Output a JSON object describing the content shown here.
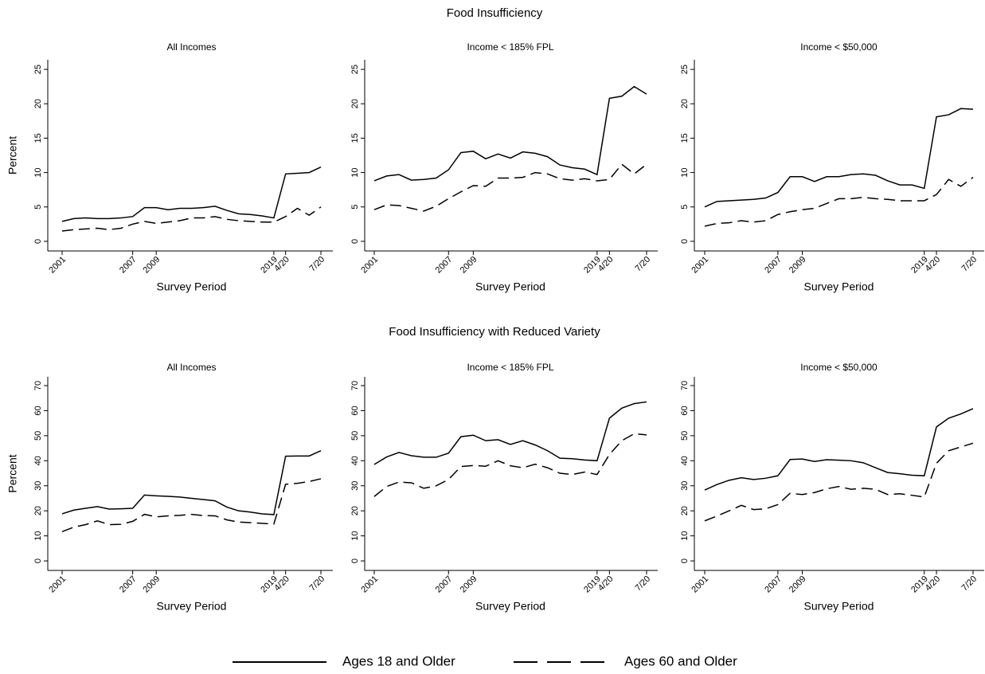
{
  "sections": [
    {
      "title": "Food Insufficiency"
    },
    {
      "title": "Food Insufficiency with Reduced Variety"
    }
  ],
  "legend": [
    {
      "name": "Ages 18 and Older",
      "dash": "solid"
    },
    {
      "name": "Ages 60 and Older",
      "dash": "dashed"
    }
  ],
  "chart_data": [
    {
      "type": "line",
      "title": "All Incomes",
      "xlabel": "Survey Period",
      "ylabel": "Percent",
      "categories": [
        "2001",
        null,
        null,
        null,
        null,
        null,
        "2007",
        null,
        "2009",
        null,
        null,
        null,
        null,
        null,
        null,
        null,
        null,
        null,
        "2019",
        "4/20",
        null,
        null,
        "7/20"
      ],
      "ylim": [
        -1.4,
        26.4
      ],
      "yticks": [
        0,
        5,
        10,
        15,
        20,
        25
      ],
      "series": [
        {
          "color": "#000000",
          "values": [
            2.9,
            3.3,
            3.4,
            3.3,
            3.3,
            3.4,
            3.6,
            4.9,
            4.9,
            4.6,
            4.8,
            4.8,
            4.9,
            5.1,
            4.5,
            4.0,
            3.9,
            3.7,
            3.4,
            9.8,
            9.9,
            10.0,
            10.8
          ]
        },
        {
          "color": "#000000",
          "values": [
            1.5,
            1.7,
            1.8,
            1.9,
            1.7,
            1.9,
            2.5,
            2.9,
            2.6,
            2.8,
            3.0,
            3.4,
            3.4,
            3.6,
            3.2,
            3.0,
            2.9,
            2.8,
            2.8,
            3.6,
            4.8,
            3.8,
            5.0
          ]
        }
      ]
    },
    {
      "type": "line",
      "title": "Income < 185% FPL",
      "xlabel": "Survey Period",
      "categories": [
        "2001",
        null,
        null,
        null,
        null,
        null,
        "2007",
        null,
        "2009",
        null,
        null,
        null,
        null,
        null,
        null,
        null,
        null,
        null,
        "2019",
        "4/20",
        null,
        null,
        "7/20"
      ],
      "ylim": [
        -1.4,
        26.4
      ],
      "yticks": [
        0,
        5,
        10,
        15,
        20,
        25
      ],
      "series": [
        {
          "color": "#000000",
          "values": [
            8.8,
            9.5,
            9.7,
            8.9,
            9.0,
            9.2,
            10.4,
            12.9,
            13.1,
            12.0,
            12.7,
            12.1,
            13.0,
            12.8,
            12.3,
            11.1,
            10.7,
            10.5,
            9.7,
            20.8,
            21.1,
            22.5,
            21.4
          ]
        },
        {
          "color": "#000000",
          "values": [
            4.6,
            5.3,
            5.2,
            4.8,
            4.4,
            5.1,
            6.2,
            7.2,
            8.1,
            8.0,
            9.2,
            9.2,
            9.3,
            10.0,
            9.8,
            9.1,
            8.9,
            9.1,
            8.8,
            9.0,
            11.2,
            9.8,
            11.2
          ]
        }
      ]
    },
    {
      "type": "line",
      "title": "Income < $50,000",
      "xlabel": "Survey Period",
      "categories": [
        "2001",
        null,
        null,
        null,
        null,
        null,
        "2007",
        null,
        "2009",
        null,
        null,
        null,
        null,
        null,
        null,
        null,
        null,
        null,
        "2019",
        "4/20",
        null,
        null,
        "7/20"
      ],
      "ylim": [
        -1.4,
        26.4
      ],
      "yticks": [
        0,
        5,
        10,
        15,
        20,
        25
      ],
      "series": [
        {
          "color": "#000000",
          "values": [
            5.0,
            5.8,
            5.9,
            6.0,
            6.1,
            6.3,
            7.1,
            9.4,
            9.4,
            8.7,
            9.4,
            9.4,
            9.7,
            9.8,
            9.6,
            8.8,
            8.2,
            8.2,
            7.7,
            18.1,
            18.4,
            19.3,
            19.2
          ]
        },
        {
          "color": "#000000",
          "values": [
            2.2,
            2.6,
            2.7,
            3.0,
            2.8,
            3.0,
            3.9,
            4.3,
            4.6,
            4.8,
            5.5,
            6.2,
            6.2,
            6.4,
            6.2,
            6.1,
            5.9,
            5.9,
            5.9,
            6.8,
            9.0,
            8.0,
            9.3
          ]
        }
      ]
    },
    {
      "type": "line",
      "title": "All Incomes",
      "xlabel": "Survey Period",
      "ylabel": "Percent",
      "categories": [
        "2001",
        null,
        null,
        null,
        null,
        null,
        "2007",
        null,
        "2009",
        null,
        null,
        null,
        null,
        null,
        null,
        null,
        null,
        null,
        "2019",
        "4/20",
        null,
        null,
        "7/20"
      ],
      "ylim": [
        -3.8,
        73.5
      ],
      "yticks": [
        0,
        10,
        20,
        30,
        40,
        50,
        60,
        70
      ],
      "series": [
        {
          "color": "#000000",
          "values": [
            18.8,
            20.3,
            21.0,
            21.7,
            20.7,
            20.8,
            21.0,
            26.3,
            26.0,
            25.8,
            25.5,
            25.0,
            24.5,
            24.0,
            21.5,
            20.0,
            19.5,
            18.8,
            18.5,
            41.8,
            41.9,
            41.9,
            44.0
          ]
        },
        {
          "color": "#000000",
          "values": [
            11.7,
            13.5,
            14.5,
            16.0,
            14.5,
            14.6,
            15.8,
            18.6,
            17.6,
            18.0,
            18.2,
            18.6,
            18.1,
            18.0,
            16.4,
            15.5,
            15.3,
            15.0,
            14.7,
            30.6,
            31.0,
            31.7,
            32.8
          ]
        }
      ]
    },
    {
      "type": "line",
      "title": "Income < 185% FPL",
      "xlabel": "Survey Period",
      "categories": [
        "2001",
        null,
        null,
        null,
        null,
        null,
        "2007",
        null,
        "2009",
        null,
        null,
        null,
        null,
        null,
        null,
        null,
        null,
        null,
        "2019",
        "4/20",
        null,
        null,
        "7/20"
      ],
      "ylim": [
        -3.8,
        73.5
      ],
      "yticks": [
        0,
        10,
        20,
        30,
        40,
        50,
        60,
        70
      ],
      "series": [
        {
          "color": "#000000",
          "values": [
            38.5,
            41.5,
            43.3,
            42.0,
            41.4,
            41.4,
            43.0,
            49.6,
            50.2,
            48.0,
            48.4,
            46.5,
            48.0,
            46.3,
            44.0,
            41.0,
            40.8,
            40.3,
            40.0,
            57.0,
            61.0,
            62.8,
            63.5
          ]
        },
        {
          "color": "#000000",
          "values": [
            25.7,
            29.7,
            31.5,
            31.2,
            29.0,
            30.0,
            32.5,
            37.7,
            38.1,
            37.8,
            40.0,
            38.0,
            37.2,
            38.6,
            37.2,
            35.0,
            34.5,
            35.5,
            34.5,
            42.5,
            48.0,
            50.8,
            50.3
          ]
        }
      ]
    },
    {
      "type": "line",
      "title": "Income < $50,000",
      "xlabel": "Survey Period",
      "categories": [
        "2001",
        null,
        null,
        null,
        null,
        null,
        "2007",
        null,
        "2009",
        null,
        null,
        null,
        null,
        null,
        null,
        null,
        null,
        null,
        "2019",
        "4/20",
        null,
        null,
        "7/20"
      ],
      "ylim": [
        -3.8,
        73.5
      ],
      "yticks": [
        0,
        10,
        20,
        30,
        40,
        50,
        60,
        70
      ],
      "series": [
        {
          "color": "#000000",
          "values": [
            28.3,
            30.5,
            32.2,
            33.2,
            32.5,
            33.0,
            34.0,
            40.5,
            40.7,
            39.7,
            40.4,
            40.2,
            40.0,
            39.2,
            37.2,
            35.3,
            34.8,
            34.2,
            34.0,
            53.5,
            57.0,
            58.7,
            60.8
          ]
        },
        {
          "color": "#000000",
          "values": [
            16.0,
            17.9,
            20.0,
            22.2,
            20.5,
            20.8,
            22.5,
            27.0,
            26.5,
            27.3,
            28.8,
            29.7,
            28.6,
            29.0,
            28.6,
            26.5,
            26.8,
            26.2,
            25.5,
            39.0,
            44.0,
            45.5,
            47.0
          ]
        }
      ]
    }
  ]
}
